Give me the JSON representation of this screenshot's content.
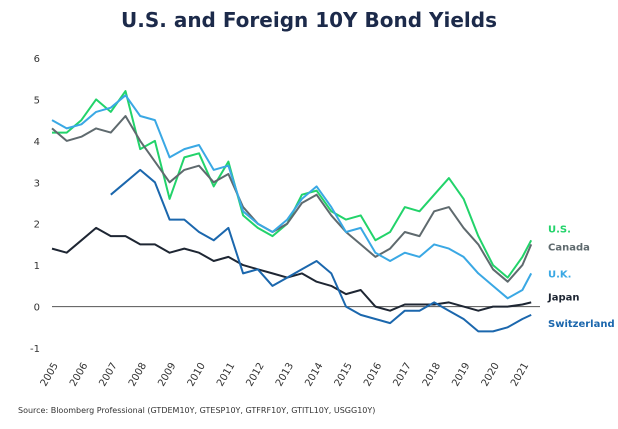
{
  "chart_data": {
    "type": "line",
    "title": "U.S. and Foreign 10Y Bond Yields",
    "source": "Source: Bloomberg Professional (GTDEM10Y, GTESP10Y, GTFRF10Y, GTITL10Y, USGG10Y)",
    "x_ticks": [
      "2005",
      "2006",
      "2007",
      "2008",
      "2009",
      "2010",
      "2011",
      "2012",
      "2013",
      "2014",
      "2015",
      "2016",
      "2017",
      "2018",
      "2019",
      "2020",
      "2021"
    ],
    "xlim": [
      2005,
      2021.6
    ],
    "y_ticks": [
      "-1",
      "0",
      "1",
      "2",
      "3",
      "4",
      "5",
      "6"
    ],
    "ylim": [
      -1,
      6
    ],
    "grid": false,
    "legend": "end-of-line labels, right",
    "series": [
      {
        "name": "U.S.",
        "color": "#22d36a",
        "x": [
          2005,
          2005.5,
          2006,
          2006.5,
          2007,
          2007.5,
          2008,
          2008.5,
          2009,
          2009.5,
          2010,
          2010.5,
          2011,
          2011.5,
          2012,
          2012.5,
          2013,
          2013.5,
          2014,
          2014.5,
          2015,
          2015.5,
          2016,
          2016.5,
          2017,
          2017.5,
          2018,
          2018.5,
          2019,
          2019.5,
          2020,
          2020.5,
          2021,
          2021.3
        ],
        "y": [
          4.2,
          4.2,
          4.5,
          5.0,
          4.7,
          5.2,
          3.8,
          4.0,
          2.6,
          3.6,
          3.7,
          2.9,
          3.5,
          2.2,
          1.9,
          1.7,
          2.0,
          2.7,
          2.8,
          2.3,
          2.1,
          2.2,
          1.6,
          1.8,
          2.4,
          2.3,
          2.7,
          3.1,
          2.6,
          1.7,
          1.0,
          0.7,
          1.2,
          1.6
        ]
      },
      {
        "name": "Canada",
        "color": "#5f6a6e",
        "x": [
          2005,
          2005.5,
          2006,
          2006.5,
          2007,
          2007.5,
          2008,
          2008.5,
          2009,
          2009.5,
          2010,
          2010.5,
          2011,
          2011.5,
          2012,
          2012.5,
          2013,
          2013.5,
          2014,
          2014.5,
          2015,
          2015.5,
          2016,
          2016.5,
          2017,
          2017.5,
          2018,
          2018.5,
          2019,
          2019.5,
          2020,
          2020.5,
          2021,
          2021.3
        ],
        "y": [
          4.3,
          4.0,
          4.1,
          4.3,
          4.2,
          4.6,
          4.0,
          3.5,
          3.0,
          3.3,
          3.4,
          3.0,
          3.2,
          2.4,
          2.0,
          1.8,
          2.0,
          2.5,
          2.7,
          2.2,
          1.8,
          1.5,
          1.2,
          1.4,
          1.8,
          1.7,
          2.3,
          2.4,
          1.9,
          1.5,
          0.9,
          0.6,
          1.0,
          1.5
        ]
      },
      {
        "name": "U.K.",
        "color": "#3aa8e4",
        "x": [
          2005,
          2005.5,
          2006,
          2006.5,
          2007,
          2007.5,
          2008,
          2008.5,
          2009,
          2009.5,
          2010,
          2010.5,
          2011,
          2011.5,
          2012,
          2012.5,
          2013,
          2013.5,
          2014,
          2014.5,
          2015,
          2015.5,
          2016,
          2016.5,
          2017,
          2017.5,
          2018,
          2018.5,
          2019,
          2019.5,
          2020,
          2020.5,
          2021,
          2021.3
        ],
        "y": [
          4.5,
          4.3,
          4.4,
          4.7,
          4.8,
          5.1,
          4.6,
          4.5,
          3.6,
          3.8,
          3.9,
          3.3,
          3.4,
          2.3,
          2.0,
          1.8,
          2.1,
          2.6,
          2.9,
          2.4,
          1.8,
          1.9,
          1.3,
          1.1,
          1.3,
          1.2,
          1.5,
          1.4,
          1.2,
          0.8,
          0.5,
          0.2,
          0.4,
          0.8
        ]
      },
      {
        "name": "Japan",
        "color": "#1e2633",
        "x": [
          2005,
          2005.5,
          2006,
          2006.5,
          2007,
          2007.5,
          2008,
          2008.5,
          2009,
          2009.5,
          2010,
          2010.5,
          2011,
          2011.5,
          2012,
          2012.5,
          2013,
          2013.5,
          2014,
          2014.5,
          2015,
          2015.5,
          2016,
          2016.5,
          2017,
          2017.5,
          2018,
          2018.5,
          2019,
          2019.5,
          2020,
          2020.5,
          2021,
          2021.3
        ],
        "y": [
          1.4,
          1.3,
          1.6,
          1.9,
          1.7,
          1.7,
          1.5,
          1.5,
          1.3,
          1.4,
          1.3,
          1.1,
          1.2,
          1.0,
          0.9,
          0.8,
          0.7,
          0.8,
          0.6,
          0.5,
          0.3,
          0.4,
          0.0,
          -0.1,
          0.05,
          0.05,
          0.05,
          0.1,
          0.0,
          -0.1,
          0.0,
          0.0,
          0.05,
          0.1
        ]
      },
      {
        "name": "Switzerland",
        "color": "#1b67ad",
        "x": [
          2007,
          2007.5,
          2008,
          2008.5,
          2009,
          2009.5,
          2010,
          2010.5,
          2011,
          2011.5,
          2012,
          2012.5,
          2013,
          2013.5,
          2014,
          2014.5,
          2015,
          2015.5,
          2016,
          2016.5,
          2017,
          2017.5,
          2018,
          2018.5,
          2019,
          2019.5,
          2020,
          2020.5,
          2021,
          2021.3
        ],
        "y": [
          2.7,
          3.0,
          3.3,
          3.0,
          2.1,
          2.1,
          1.8,
          1.6,
          1.9,
          0.8,
          0.9,
          0.5,
          0.7,
          0.9,
          1.1,
          0.8,
          0.0,
          -0.2,
          -0.3,
          -0.4,
          -0.1,
          -0.1,
          0.1,
          -0.1,
          -0.3,
          -0.6,
          -0.6,
          -0.5,
          -0.3,
          -0.2
        ]
      }
    ]
  }
}
